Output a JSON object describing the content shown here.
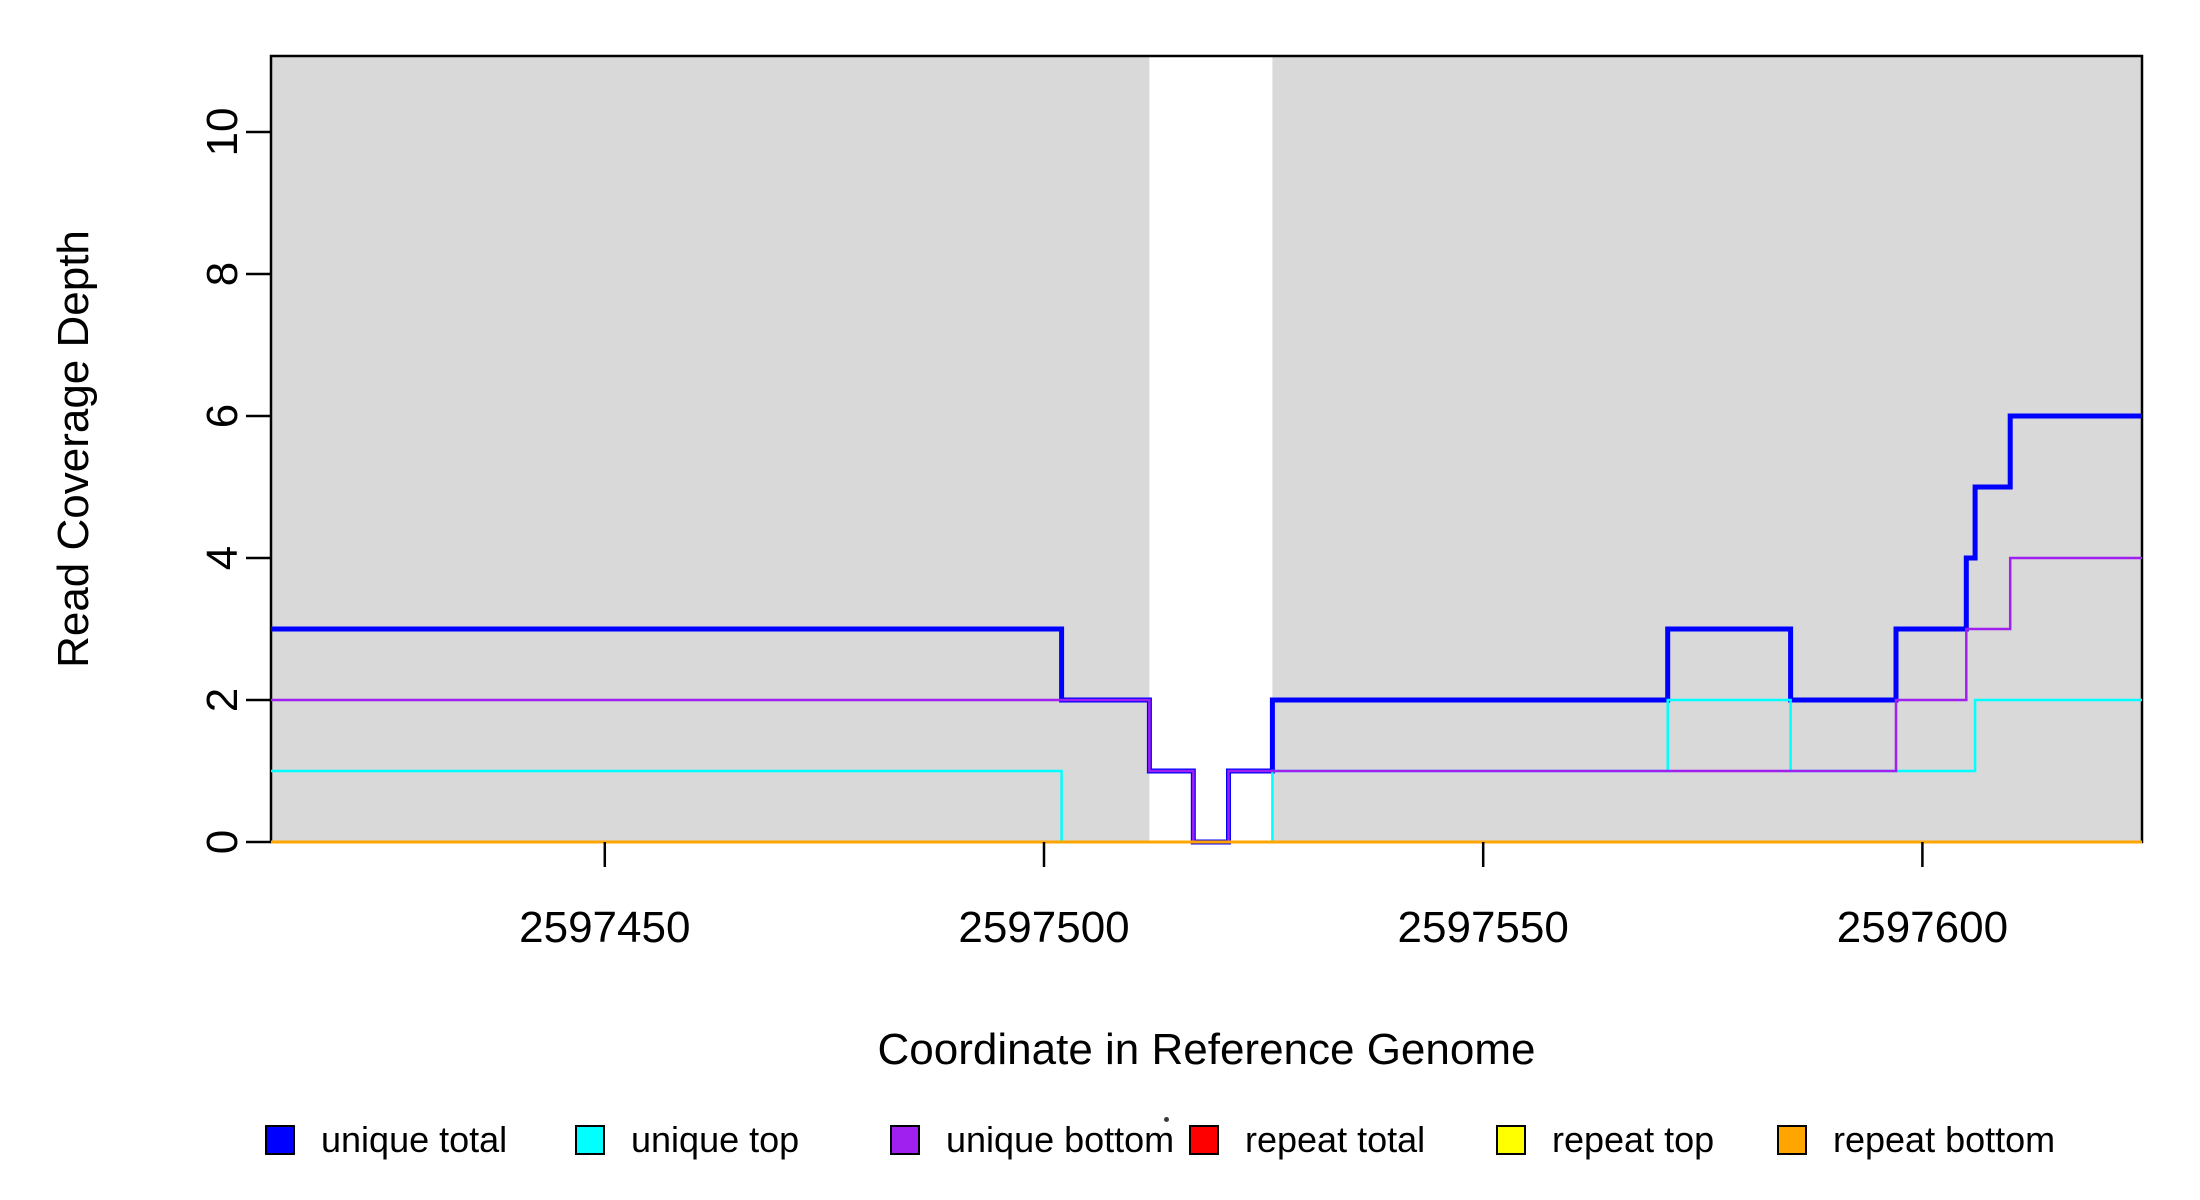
{
  "chart_data": {
    "type": "line",
    "subtype": "step",
    "title": "",
    "xlabel": "Coordinate in Reference Genome",
    "ylabel": "Read Coverage Depth",
    "xlim": [
      2597412,
      2597625
    ],
    "ylim": [
      0,
      11.07
    ],
    "x_ticks": [
      "2597450",
      "2597500",
      "2597550",
      "2597600"
    ],
    "x_tick_values": [
      2597450,
      2597500,
      2597550,
      2597600
    ],
    "y_ticks": [
      "0",
      "2",
      "4",
      "6",
      "8",
      "10"
    ],
    "y_tick_values": [
      0,
      2,
      4,
      6,
      8,
      10
    ],
    "grid": false,
    "box": true,
    "axis_color": "#000000",
    "shading": {
      "color": "#D9D9D9",
      "regions": [
        [
          2597412,
          2597512
        ],
        [
          2597526,
          2597625
        ]
      ],
      "gap_note": "white unshaded band between 2597512 and 2597526"
    },
    "series": [
      {
        "name": "unique total",
        "color": "#0000FF",
        "line_width": 5,
        "steps": [
          [
            2597412,
            3
          ],
          [
            2597502,
            2
          ],
          [
            2597512,
            1
          ],
          [
            2597517,
            0
          ],
          [
            2597521,
            1
          ],
          [
            2597526,
            2
          ],
          [
            2597571,
            3
          ],
          [
            2597585,
            2
          ],
          [
            2597597,
            3
          ],
          [
            2597605,
            4
          ],
          [
            2597606,
            5
          ],
          [
            2597610,
            6
          ]
        ]
      },
      {
        "name": "unique top",
        "color": "#00FFFF",
        "line_width": 2.5,
        "steps": [
          [
            2597412,
            1
          ],
          [
            2597502,
            0
          ],
          [
            2597526,
            1
          ],
          [
            2597571,
            2
          ],
          [
            2597585,
            1
          ],
          [
            2597606,
            2
          ]
        ]
      },
      {
        "name": "unique bottom",
        "color": "#A020F0",
        "line_width": 2.5,
        "steps": [
          [
            2597412,
            2
          ],
          [
            2597512,
            1
          ],
          [
            2597517,
            0
          ],
          [
            2597521,
            1
          ],
          [
            2597597,
            2
          ],
          [
            2597605,
            3
          ],
          [
            2597610,
            4
          ]
        ]
      },
      {
        "name": "repeat total",
        "color": "#FF0000",
        "line_width": 2.5,
        "steps": [
          [
            2597412,
            0
          ]
        ]
      },
      {
        "name": "repeat top",
        "color": "#FFFF00",
        "line_width": 2.5,
        "steps": [
          [
            2597412,
            0
          ]
        ]
      },
      {
        "name": "repeat bottom",
        "color": "#FFA500",
        "line_width": 3,
        "steps": [
          [
            2597412,
            0
          ]
        ]
      }
    ],
    "legend": {
      "position": "bottom",
      "items": [
        {
          "label": "unique total",
          "color": "#0000FF"
        },
        {
          "label": "unique top",
          "color": "#00FFFF"
        },
        {
          "label": "unique bottom",
          "color": "#A020F0"
        },
        {
          "label": "repeat total",
          "color": "#FF0000"
        },
        {
          "label": "repeat top",
          "color": "#FFFF00"
        },
        {
          "label": "repeat bottom",
          "color": "#FFA500"
        }
      ]
    }
  }
}
